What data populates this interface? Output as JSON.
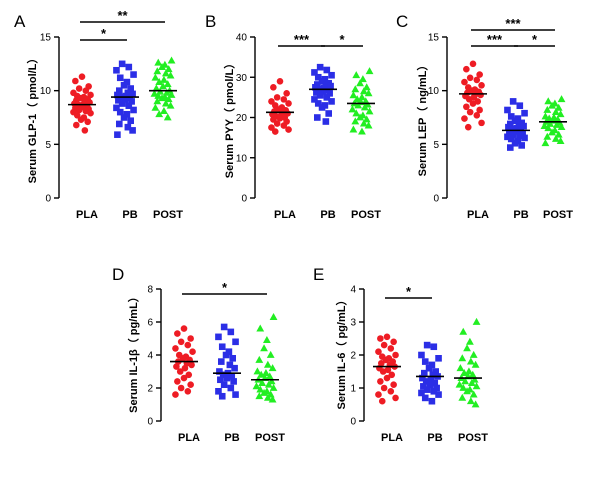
{
  "chart_data": [
    {
      "type": "scatter",
      "panel": "A",
      "ylabel": "Serum GLP-1（ pmol/L）",
      "ylim": [
        0,
        15
      ],
      "yticks": [
        0,
        5,
        10,
        15
      ],
      "categories": [
        "PLA",
        "PB",
        "POST"
      ],
      "series": [
        {
          "name": "PLA",
          "marker": "circle",
          "color": "#ee1c24",
          "mean": 8.7,
          "values": [
            11.3,
            10.9,
            10.4,
            10.2,
            10.0,
            9.8,
            9.6,
            9.5,
            9.4,
            9.3,
            9.2,
            9.1,
            9.0,
            8.9,
            8.8,
            8.7,
            8.7,
            8.6,
            8.5,
            8.4,
            8.3,
            8.2,
            8.1,
            8.0,
            7.9,
            7.7,
            7.5,
            7.3,
            7.1,
            6.8,
            6.3
          ]
        },
        {
          "name": "PB",
          "marker": "square",
          "color": "#2b2ee6",
          "mean": 9.4,
          "values": [
            12.5,
            12.2,
            11.9,
            11.5,
            11.2,
            10.8,
            10.5,
            10.2,
            10.0,
            9.8,
            9.7,
            9.6,
            9.5,
            9.4,
            9.3,
            9.2,
            9.1,
            9.0,
            8.8,
            8.6,
            8.4,
            8.2,
            8.0,
            7.8,
            7.5,
            7.2,
            6.9,
            6.6,
            6.3,
            5.9
          ]
        },
        {
          "name": "POST",
          "marker": "triangle",
          "color": "#22ee22",
          "mean": 10.0,
          "values": [
            12.8,
            12.6,
            12.4,
            12.2,
            12.0,
            11.8,
            11.6,
            11.4,
            11.2,
            11.0,
            10.8,
            10.6,
            10.4,
            10.2,
            10.0,
            9.9,
            9.8,
            9.7,
            9.6,
            9.5,
            9.4,
            9.3,
            9.2,
            9.0,
            8.8,
            8.6,
            8.4,
            8.1,
            7.8,
            7.5
          ]
        }
      ],
      "significance": [
        {
          "from": 0,
          "to": 1,
          "label": "*"
        },
        {
          "from": 0,
          "to": 2,
          "label": "**"
        }
      ]
    },
    {
      "type": "scatter",
      "panel": "B",
      "ylabel": "Serum PYY（ pmol/L）",
      "ylim": [
        0,
        40
      ],
      "yticks": [
        0,
        10,
        20,
        30,
        40
      ],
      "categories": [
        "PLA",
        "PB",
        "POST"
      ],
      "series": [
        {
          "name": "PLA",
          "marker": "circle",
          "color": "#ee1c24",
          "mean": 21.3,
          "values": [
            29.0,
            27.5,
            26.0,
            25.0,
            24.5,
            24.0,
            23.5,
            23.0,
            22.5,
            22.0,
            21.8,
            21.5,
            21.3,
            21.0,
            20.8,
            20.5,
            20.3,
            20.0,
            19.8,
            19.5,
            19.0,
            18.5,
            18.0,
            17.5,
            17.0,
            16.5
          ]
        },
        {
          "name": "PB",
          "marker": "square",
          "color": "#2b2ee6",
          "mean": 27.0,
          "values": [
            32.5,
            31.8,
            31.2,
            30.5,
            30.0,
            29.5,
            29.0,
            28.5,
            28.2,
            28.0,
            27.8,
            27.5,
            27.3,
            27.0,
            26.8,
            26.5,
            26.2,
            26.0,
            25.5,
            25.0,
            24.5,
            24.0,
            23.5,
            23.0,
            22.5,
            21.0,
            20.0,
            19.0
          ]
        },
        {
          "name": "POST",
          "marker": "triangle",
          "color": "#22ee22",
          "mean": 23.5,
          "values": [
            31.5,
            30.5,
            29.5,
            28.5,
            27.5,
            27.0,
            26.5,
            26.0,
            25.5,
            25.0,
            24.5,
            24.0,
            23.8,
            23.5,
            23.2,
            23.0,
            22.5,
            22.0,
            21.5,
            21.0,
            20.5,
            20.0,
            19.5,
            19.0,
            18.5,
            18.0,
            17.0,
            16.5
          ]
        }
      ],
      "significance": [
        {
          "from": 0,
          "to": 1,
          "label": "***"
        },
        {
          "from": 1,
          "to": 2,
          "label": "*"
        }
      ]
    },
    {
      "type": "scatter",
      "panel": "C",
      "ylabel": "Serum LEP（ ng/mL）",
      "ylim": [
        0,
        15
      ],
      "yticks": [
        0,
        5,
        10,
        15
      ],
      "categories": [
        "PLA",
        "PB",
        "POST"
      ],
      "series": [
        {
          "name": "PLA",
          "marker": "circle",
          "color": "#ee1c24",
          "mean": 9.7,
          "values": [
            12.5,
            12.0,
            11.5,
            11.2,
            11.0,
            10.8,
            10.5,
            10.3,
            10.1,
            10.0,
            9.9,
            9.8,
            9.7,
            9.6,
            9.5,
            9.4,
            9.2,
            9.0,
            8.8,
            8.5,
            8.2,
            8.0,
            7.7,
            7.4,
            7.0,
            6.6
          ]
        },
        {
          "name": "PB",
          "marker": "square",
          "color": "#2b2ee6",
          "mean": 6.3,
          "values": [
            9.0,
            8.6,
            8.2,
            7.9,
            7.6,
            7.4,
            7.2,
            7.0,
            6.9,
            6.8,
            6.7,
            6.6,
            6.5,
            6.4,
            6.3,
            6.2,
            6.1,
            6.0,
            5.9,
            5.8,
            5.7,
            5.6,
            5.5,
            5.3,
            5.1,
            4.9,
            4.7
          ]
        },
        {
          "name": "POST",
          "marker": "triangle",
          "color": "#22ee22",
          "mean": 7.1,
          "values": [
            9.2,
            9.0,
            8.8,
            8.6,
            8.4,
            8.2,
            8.0,
            7.8,
            7.6,
            7.5,
            7.4,
            7.3,
            7.2,
            7.1,
            7.0,
            6.9,
            6.8,
            6.7,
            6.6,
            6.5,
            6.3,
            6.1,
            5.9,
            5.7,
            5.5,
            5.3,
            5.1
          ]
        }
      ],
      "significance": [
        {
          "from": 0,
          "to": 2,
          "label": "***"
        },
        {
          "from": 0,
          "to": 1,
          "label": "***"
        },
        {
          "from": 1,
          "to": 2,
          "label": "*"
        }
      ]
    },
    {
      "type": "scatter",
      "panel": "D",
      "ylabel": "Serum IL-1β（ pg/mL）",
      "ylim": [
        0,
        8
      ],
      "yticks": [
        0,
        2,
        4,
        6,
        8
      ],
      "categories": [
        "PLA",
        "PB",
        "POST"
      ],
      "series": [
        {
          "name": "PLA",
          "marker": "circle",
          "color": "#ee1c24",
          "mean": 3.6,
          "values": [
            5.6,
            5.3,
            5.0,
            4.8,
            4.6,
            4.4,
            4.2,
            4.0,
            3.9,
            3.8,
            3.7,
            3.6,
            3.5,
            3.4,
            3.3,
            3.2,
            3.0,
            2.8,
            2.6,
            2.4,
            2.2,
            2.0,
            1.8,
            1.6
          ]
        },
        {
          "name": "PB",
          "marker": "square",
          "color": "#2b2ee6",
          "mean": 2.9,
          "values": [
            5.7,
            5.4,
            5.1,
            4.8,
            4.5,
            4.2,
            4.0,
            3.8,
            3.6,
            3.4,
            3.2,
            3.0,
            2.9,
            2.8,
            2.7,
            2.6,
            2.5,
            2.4,
            2.2,
            2.0,
            1.8,
            1.6,
            1.5
          ]
        },
        {
          "name": "POST",
          "marker": "triangle",
          "color": "#22ee22",
          "mean": 2.5,
          "values": [
            6.3,
            5.6,
            4.9,
            4.4,
            4.0,
            3.7,
            3.4,
            3.2,
            3.0,
            2.9,
            2.8,
            2.7,
            2.6,
            2.5,
            2.4,
            2.3,
            2.2,
            2.1,
            2.0,
            1.9,
            1.8,
            1.7,
            1.6,
            1.5,
            1.4,
            1.3
          ]
        }
      ],
      "significance": [
        {
          "from": 0,
          "to": 2,
          "label": "*"
        }
      ]
    },
    {
      "type": "scatter",
      "panel": "E",
      "ylabel": "Serum IL-6（ pg/mL）",
      "ylim": [
        0,
        4
      ],
      "yticks": [
        0,
        1,
        2,
        3,
        4
      ],
      "categories": [
        "PLA",
        "PB",
        "POST"
      ],
      "series": [
        {
          "name": "PLA",
          "marker": "circle",
          "color": "#ee1c24",
          "mean": 1.65,
          "values": [
            2.55,
            2.5,
            2.4,
            2.3,
            2.2,
            2.1,
            2.0,
            1.95,
            1.9,
            1.85,
            1.8,
            1.75,
            1.7,
            1.65,
            1.6,
            1.55,
            1.5,
            1.4,
            1.3,
            1.2,
            1.1,
            1.0,
            0.9,
            0.8,
            0.7,
            0.6
          ]
        },
        {
          "name": "PB",
          "marker": "square",
          "color": "#2b2ee6",
          "mean": 1.35,
          "values": [
            2.3,
            2.25,
            2.0,
            1.9,
            1.8,
            1.7,
            1.6,
            1.5,
            1.45,
            1.4,
            1.35,
            1.3,
            1.25,
            1.2,
            1.15,
            1.1,
            1.05,
            1.0,
            0.95,
            0.9,
            0.85,
            0.8,
            0.7,
            0.6
          ]
        },
        {
          "name": "POST",
          "marker": "triangle",
          "color": "#22ee22",
          "mean": 1.3,
          "values": [
            3.0,
            2.7,
            2.4,
            2.2,
            2.0,
            1.9,
            1.8,
            1.7,
            1.6,
            1.5,
            1.45,
            1.4,
            1.35,
            1.3,
            1.25,
            1.2,
            1.15,
            1.1,
            1.05,
            1.0,
            0.95,
            0.9,
            0.8,
            0.7,
            0.6,
            0.5
          ]
        }
      ],
      "significance": [
        {
          "from": 0,
          "to": 1,
          "label": "*"
        }
      ]
    }
  ]
}
